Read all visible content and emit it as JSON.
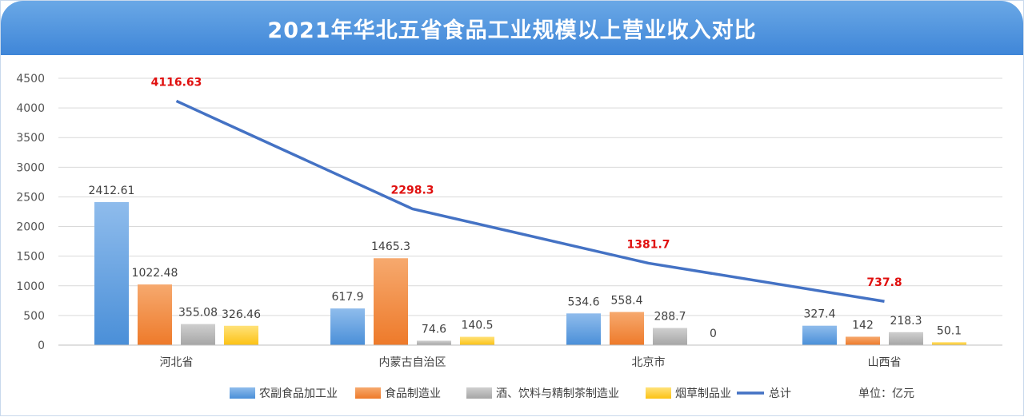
{
  "chart_data": {
    "type": "bar",
    "title": "2021年华北五省食品工业规模以上营业收入对比",
    "categories": [
      "河北省",
      "内蒙古自治区",
      "北京市",
      "山西省"
    ],
    "series": [
      {
        "name": "农副食品加工业",
        "values": [
          2412.61,
          617.9,
          534.6,
          327.4
        ],
        "labels": [
          "2412.61",
          "617.9",
          "534.6",
          "327.4"
        ]
      },
      {
        "name": "食品制造业",
        "values": [
          1022.48,
          1465.3,
          558.4,
          142
        ],
        "labels": [
          "1022.48",
          "1465.3",
          "558.4",
          "142"
        ]
      },
      {
        "name": "酒、饮料与精制茶制造业",
        "values": [
          355.08,
          74.6,
          288.7,
          218.3
        ],
        "labels": [
          "355.08",
          "74.6",
          "288.7",
          "218.3"
        ]
      },
      {
        "name": "烟草制品业",
        "values": [
          326.46,
          140.5,
          0,
          50.1
        ],
        "labels": [
          "326.46",
          "140.5",
          "0",
          "50.1"
        ]
      }
    ],
    "line_series": {
      "name": "总计",
      "type": "line",
      "values": [
        4116.63,
        2298.3,
        1381.7,
        737.8
      ],
      "labels": [
        "4116.63",
        "2298.3",
        "1381.7",
        "737.8"
      ]
    },
    "ylim": [
      0,
      4500
    ],
    "yticks": [
      "0",
      "500",
      "1000",
      "1500",
      "2000",
      "2500",
      "3000",
      "3500",
      "4000",
      "4500"
    ],
    "xlabel": "",
    "ylabel": "",
    "grid": true,
    "legend_position": "bottom",
    "unit_note": "单位：亿元"
  },
  "colors": {
    "series": [
      "#4a8fd8",
      "#ee7a2a",
      "#a6a6a6",
      "#fcc214"
    ],
    "series_light": [
      "#8fbcec",
      "#f6a96e",
      "#cfcfcf",
      "#ffe27a"
    ],
    "line": "#4472c4",
    "total_label": "#e0100f",
    "grid": "#d9d9d9"
  }
}
